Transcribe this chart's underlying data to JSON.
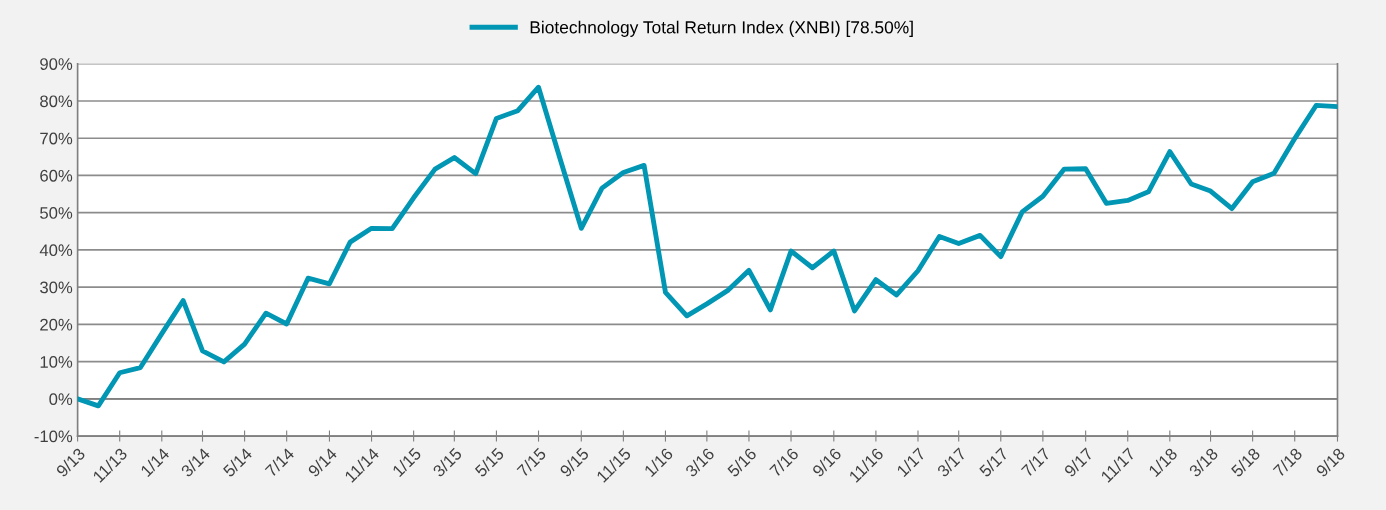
{
  "chart_data": {
    "type": "line",
    "legend": "top",
    "grid": "y",
    "line_style": "solid",
    "marker": "none",
    "x": [
      "2013-09",
      "2013-10",
      "2013-11",
      "2013-12",
      "2014-01",
      "2014-02",
      "2014-03",
      "2014-04",
      "2014-05",
      "2014-06",
      "2014-07",
      "2014-08",
      "2014-09",
      "2014-10",
      "2014-11",
      "2014-12",
      "2015-01",
      "2015-02",
      "2015-03",
      "2015-04",
      "2015-05",
      "2015-06",
      "2015-07",
      "2015-08",
      "2015-09",
      "2015-10",
      "2015-11",
      "2015-12",
      "2016-01",
      "2016-02",
      "2016-03",
      "2016-04",
      "2016-05",
      "2016-06",
      "2016-07",
      "2016-08",
      "2016-09",
      "2016-10",
      "2016-11",
      "2016-12",
      "2017-01",
      "2017-02",
      "2017-03",
      "2017-04",
      "2017-05",
      "2017-06",
      "2017-07",
      "2017-08",
      "2017-09",
      "2017-10",
      "2017-11",
      "2017-12",
      "2018-01",
      "2018-02",
      "2018-03",
      "2018-04",
      "2018-05",
      "2018-06",
      "2018-07",
      "2018-08",
      "2018-09"
    ],
    "series": [
      {
        "name": "Biotechnology Total Return Index (XNBI) [78.50%]",
        "color": "#0096b4",
        "values": [
          0,
          -1.9,
          7,
          8.4,
          17.5,
          26.4,
          12.9,
          9.9,
          14.7,
          23,
          20.1,
          32.4,
          30.9,
          42.1,
          45.8,
          45.7,
          54,
          61.7,
          64.8,
          60.5,
          75.3,
          77.4,
          83.7,
          64.6,
          45.8,
          56.6,
          60.8,
          62.7,
          28.6,
          22.3,
          25.5,
          29.2,
          34.5,
          23.9,
          39.7,
          35.2,
          39.7,
          23.6,
          32,
          27.9,
          34.4,
          43.6,
          41.7,
          43.9,
          38.2,
          50.2,
          54.4,
          61.7,
          61.8,
          52.5,
          53.3,
          55.6,
          66.4,
          57.7,
          55.8,
          51.1,
          58.3,
          60.6,
          69.9,
          78.8,
          78.5
        ]
      }
    ],
    "xlim": [
      "2013-09",
      "2018-09"
    ],
    "xticks": [
      {
        "value": "2013-09",
        "label": "9/13"
      },
      {
        "value": "2013-11",
        "label": "11/13"
      },
      {
        "value": "2014-01",
        "label": "1/14"
      },
      {
        "value": "2014-03",
        "label": "3/14"
      },
      {
        "value": "2014-05",
        "label": "5/14"
      },
      {
        "value": "2014-07",
        "label": "7/14"
      },
      {
        "value": "2014-09",
        "label": "9/14"
      },
      {
        "value": "2014-11",
        "label": "11/14"
      },
      {
        "value": "2015-01",
        "label": "1/15"
      },
      {
        "value": "2015-03",
        "label": "3/15"
      },
      {
        "value": "2015-05",
        "label": "5/15"
      },
      {
        "value": "2015-07",
        "label": "7/15"
      },
      {
        "value": "2015-09",
        "label": "9/15"
      },
      {
        "value": "2015-11",
        "label": "11/15"
      },
      {
        "value": "2016-01",
        "label": "1/16"
      },
      {
        "value": "2016-03",
        "label": "3/16"
      },
      {
        "value": "2016-05",
        "label": "5/16"
      },
      {
        "value": "2016-07",
        "label": "7/16"
      },
      {
        "value": "2016-09",
        "label": "9/16"
      },
      {
        "value": "2016-11",
        "label": "11/16"
      },
      {
        "value": "2017-01",
        "label": "1/17"
      },
      {
        "value": "2017-03",
        "label": "3/17"
      },
      {
        "value": "2017-05",
        "label": "5/17"
      },
      {
        "value": "2017-07",
        "label": "7/17"
      },
      {
        "value": "2017-09",
        "label": "9/17"
      },
      {
        "value": "2017-11",
        "label": "11/17"
      },
      {
        "value": "2018-01",
        "label": "1/18"
      },
      {
        "value": "2018-03",
        "label": "3/18"
      },
      {
        "value": "2018-05",
        "label": "5/18"
      },
      {
        "value": "2018-07",
        "label": "7/18"
      },
      {
        "value": "2018-09",
        "label": "9/18"
      }
    ],
    "ylim": [
      -10,
      90
    ],
    "yticks": [
      {
        "value": -10,
        "label": "-10%"
      },
      {
        "value": 0,
        "label": "0%"
      },
      {
        "value": 10,
        "label": "10%"
      },
      {
        "value": 20,
        "label": "20%"
      },
      {
        "value": 30,
        "label": "30%"
      },
      {
        "value": 40,
        "label": "40%"
      },
      {
        "value": 50,
        "label": "50%"
      },
      {
        "value": 60,
        "label": "60%"
      },
      {
        "value": 70,
        "label": "70%"
      },
      {
        "value": 80,
        "label": "80%"
      },
      {
        "value": 90,
        "label": "90%"
      }
    ]
  }
}
